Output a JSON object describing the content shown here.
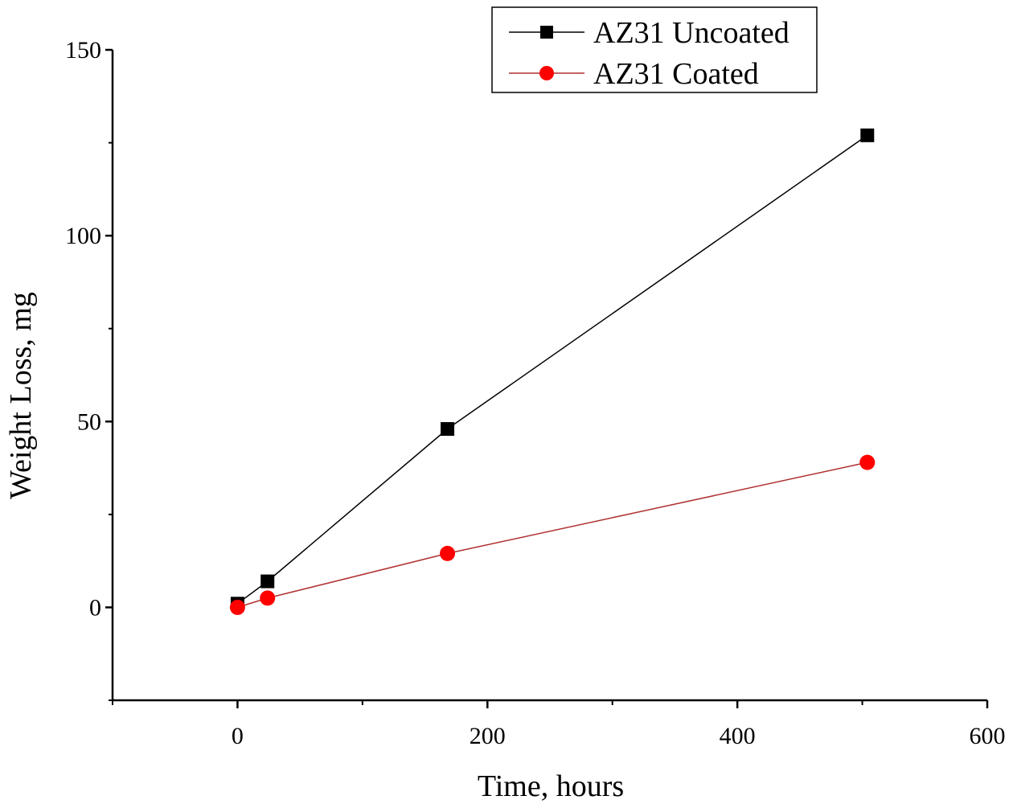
{
  "chart_data": {
    "type": "line",
    "title": "",
    "xlabel": "Time, hours",
    "ylabel": "Weight Loss, mg",
    "xlim": [
      -100,
      600
    ],
    "ylim": [
      -25,
      150
    ],
    "xticks": [
      0,
      200,
      400,
      600
    ],
    "xtick_labels": [
      "0",
      "200",
      "400",
      "600"
    ],
    "yticks": [
      0,
      50,
      100,
      150
    ],
    "ytick_labels": [
      "0",
      "50",
      "100",
      "150"
    ],
    "grid": false,
    "legend_position": "top-right",
    "series": [
      {
        "name": "AZ31 Uncoated",
        "color": "#000000",
        "marker": "square",
        "x": [
          0,
          24,
          168,
          504
        ],
        "y": [
          1,
          7,
          48,
          127
        ]
      },
      {
        "name": "AZ31 Coated",
        "color": "#ff0000",
        "line_color": "#b03030",
        "marker": "circle",
        "x": [
          0,
          24,
          168,
          504
        ],
        "y": [
          0,
          2.5,
          14.5,
          39
        ]
      }
    ]
  }
}
